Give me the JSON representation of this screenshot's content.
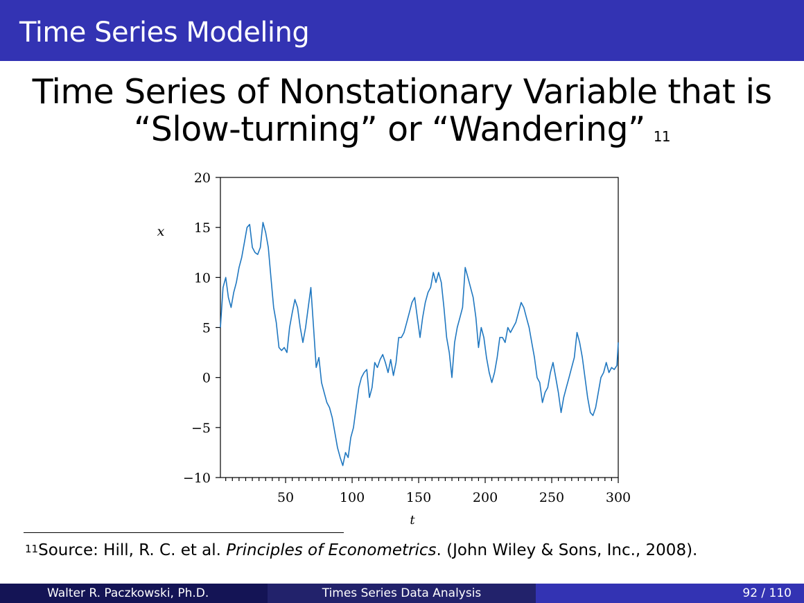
{
  "header": {
    "title": "Time Series Modeling"
  },
  "slide": {
    "title_line1": "Time Series of Nonstationary Variable that is",
    "title_line2": "“Slow-turning” or “Wandering”",
    "title_footnote_mark": "11"
  },
  "footnote": {
    "mark": "11",
    "text_before": "Source: Hill, R. C. et al. ",
    "book_title": "Principles of Econometrics",
    "text_after": ". (John Wiley & Sons, Inc., 2008)."
  },
  "footer": {
    "author": "Walter R. Paczkowski, Ph.D.",
    "course": "Times Series Data Analysis",
    "page": "92 / 110"
  },
  "colors": {
    "header_bg": "#3333b3",
    "line": "#1f77c0"
  },
  "chart_data": {
    "type": "line",
    "xlabel": "t",
    "ylabel": "x",
    "xlim": [
      1,
      300
    ],
    "ylim": [
      -10,
      20
    ],
    "xticks": [
      50,
      100,
      150,
      200,
      250,
      300
    ],
    "yticks": [
      -10,
      -5,
      0,
      5,
      10,
      15,
      20
    ],
    "grid": false,
    "series": [
      {
        "keypoints": [
          [
            1,
            5
          ],
          [
            3,
            9
          ],
          [
            5,
            10
          ],
          [
            7,
            8
          ],
          [
            9,
            7
          ],
          [
            11,
            8.5
          ],
          [
            13,
            9.5
          ],
          [
            15,
            11
          ],
          [
            17,
            12
          ],
          [
            19,
            13.5
          ],
          [
            21,
            15
          ],
          [
            23,
            15.3
          ],
          [
            25,
            13
          ],
          [
            27,
            12.5
          ],
          [
            29,
            12.3
          ],
          [
            31,
            13
          ],
          [
            33,
            15.5
          ],
          [
            35,
            14.5
          ],
          [
            37,
            13
          ],
          [
            39,
            10
          ],
          [
            41,
            7
          ],
          [
            43,
            5.5
          ],
          [
            45,
            3
          ],
          [
            47,
            2.7
          ],
          [
            49,
            3
          ],
          [
            51,
            2.5
          ],
          [
            53,
            5
          ],
          [
            55,
            6.5
          ],
          [
            57,
            7.8
          ],
          [
            59,
            7
          ],
          [
            61,
            5
          ],
          [
            63,
            3.5
          ],
          [
            65,
            5
          ],
          [
            67,
            7
          ],
          [
            69,
            9
          ],
          [
            71,
            5
          ],
          [
            73,
            1
          ],
          [
            75,
            2
          ],
          [
            77,
            -0.5
          ],
          [
            79,
            -1.5
          ],
          [
            81,
            -2.5
          ],
          [
            83,
            -3
          ],
          [
            85,
            -4
          ],
          [
            87,
            -5.5
          ],
          [
            89,
            -7
          ],
          [
            91,
            -8
          ],
          [
            93,
            -8.8
          ],
          [
            95,
            -7.5
          ],
          [
            97,
            -8
          ],
          [
            99,
            -6
          ],
          [
            101,
            -5
          ],
          [
            103,
            -3
          ],
          [
            105,
            -1
          ],
          [
            107,
            0
          ],
          [
            109,
            0.5
          ],
          [
            111,
            0.8
          ],
          [
            113,
            -2
          ],
          [
            115,
            -1
          ],
          [
            117,
            1.5
          ],
          [
            119,
            1
          ],
          [
            121,
            1.8
          ],
          [
            123,
            2.3
          ],
          [
            125,
            1.5
          ],
          [
            127,
            0.5
          ],
          [
            129,
            1.8
          ],
          [
            131,
            0.2
          ],
          [
            133,
            1.5
          ],
          [
            135,
            4
          ],
          [
            137,
            4
          ],
          [
            139,
            4.5
          ],
          [
            141,
            5.5
          ],
          [
            143,
            6.5
          ],
          [
            145,
            7.5
          ],
          [
            147,
            8
          ],
          [
            149,
            6
          ],
          [
            151,
            4
          ],
          [
            153,
            6
          ],
          [
            155,
            7.5
          ],
          [
            157,
            8.5
          ],
          [
            159,
            9
          ],
          [
            161,
            10.5
          ],
          [
            163,
            9.5
          ],
          [
            165,
            10.5
          ],
          [
            167,
            9.5
          ],
          [
            169,
            7
          ],
          [
            171,
            4
          ],
          [
            173,
            2.5
          ],
          [
            175,
            0
          ],
          [
            177,
            3.5
          ],
          [
            179,
            5
          ],
          [
            181,
            6
          ],
          [
            183,
            7
          ],
          [
            185,
            11
          ],
          [
            187,
            10
          ],
          [
            189,
            9
          ],
          [
            191,
            8
          ],
          [
            193,
            6
          ],
          [
            195,
            3
          ],
          [
            197,
            5
          ],
          [
            199,
            4
          ],
          [
            201,
            2
          ],
          [
            203,
            0.5
          ],
          [
            205,
            -0.5
          ],
          [
            207,
            0.5
          ],
          [
            209,
            2
          ],
          [
            211,
            4
          ],
          [
            213,
            4
          ],
          [
            215,
            3.5
          ],
          [
            217,
            5
          ],
          [
            219,
            4.5
          ],
          [
            221,
            5
          ],
          [
            223,
            5.5
          ],
          [
            225,
            6.5
          ],
          [
            227,
            7.5
          ],
          [
            229,
            7
          ],
          [
            231,
            6
          ],
          [
            233,
            5
          ],
          [
            235,
            3.5
          ],
          [
            237,
            2
          ],
          [
            239,
            0
          ],
          [
            241,
            -0.5
          ],
          [
            243,
            -2.5
          ],
          [
            245,
            -1.5
          ],
          [
            247,
            -1
          ],
          [
            249,
            0.5
          ],
          [
            251,
            1.5
          ],
          [
            253,
            0
          ],
          [
            255,
            -1.5
          ],
          [
            257,
            -3.5
          ],
          [
            259,
            -2
          ],
          [
            261,
            -1
          ],
          [
            263,
            0
          ],
          [
            265,
            1
          ],
          [
            267,
            2
          ],
          [
            269,
            4.5
          ],
          [
            271,
            3.5
          ],
          [
            273,
            2
          ],
          [
            275,
            0
          ],
          [
            277,
            -2
          ],
          [
            279,
            -3.5
          ],
          [
            281,
            -3.8
          ],
          [
            283,
            -3
          ],
          [
            285,
            -1.5
          ],
          [
            287,
            0
          ],
          [
            289,
            0.5
          ],
          [
            291,
            1.5
          ],
          [
            293,
            0.5
          ],
          [
            295,
            1
          ],
          [
            297,
            0.8
          ],
          [
            299,
            1.2
          ],
          [
            300,
            3.5
          ]
        ]
      }
    ]
  }
}
